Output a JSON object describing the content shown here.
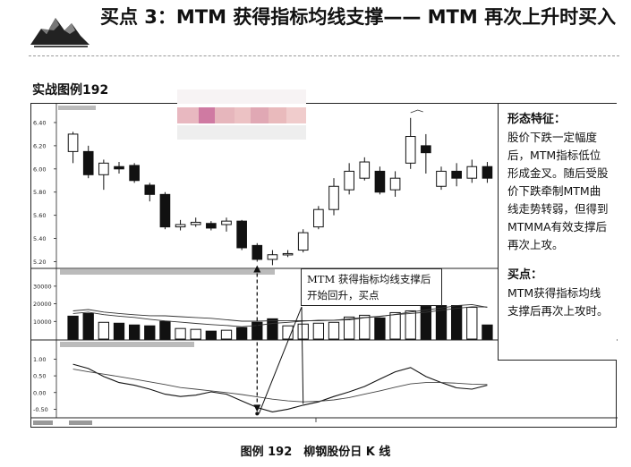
{
  "header": {
    "title": "买点 3：MTM 获得指标均线支撑—— MTM 再次上升时买入",
    "logo_icon": "mountain-logo-icon"
  },
  "section_title": "实战图例192",
  "sidebar": {
    "form_heading": "形态特征：",
    "form_text": "股价下跌一定幅度后，MTM指标低位形成金叉。随后受股价下跌牵制MTM曲线走势转弱，但得到MTMMA有效支撑后再次上攻。",
    "buy_heading": "买点：",
    "buy_text": "MTM获得指标均线支撑后再次上攻时。"
  },
  "callout": {
    "text": "MTM 获得指标均线支撑后开始回升，买点"
  },
  "caption": "图例 192　柳钢股份日 K 线",
  "chart_data": [
    {
      "type": "candlestick",
      "panel": "price",
      "y_ticks": [
        "6.40",
        "6.20",
        "6.00",
        "5.80",
        "5.60",
        "5.40",
        "5.20"
      ],
      "ylim": [
        5.15,
        6.5
      ],
      "candles": [
        {
          "o": 6.15,
          "c": 6.3,
          "h": 6.32,
          "l": 6.05
        },
        {
          "o": 6.15,
          "c": 5.95,
          "h": 6.2,
          "l": 5.92
        },
        {
          "o": 5.95,
          "c": 6.05,
          "h": 6.08,
          "l": 5.82
        },
        {
          "o": 6.02,
          "c": 6.0,
          "h": 6.06,
          "l": 5.96
        },
        {
          "o": 6.03,
          "c": 5.9,
          "h": 6.05,
          "l": 5.88
        },
        {
          "o": 5.86,
          "c": 5.78,
          "h": 5.88,
          "l": 5.72
        },
        {
          "o": 5.78,
          "c": 5.5,
          "h": 5.8,
          "l": 5.48
        },
        {
          "o": 5.5,
          "c": 5.52,
          "h": 5.56,
          "l": 5.47
        },
        {
          "o": 5.52,
          "c": 5.54,
          "h": 5.58,
          "l": 5.5
        },
        {
          "o": 5.53,
          "c": 5.49,
          "h": 5.55,
          "l": 5.47
        },
        {
          "o": 5.52,
          "c": 5.55,
          "h": 5.58,
          "l": 5.46
        },
        {
          "o": 5.55,
          "c": 5.32,
          "h": 5.56,
          "l": 5.3
        },
        {
          "o": 5.34,
          "c": 5.22,
          "h": 5.36,
          "l": 5.2
        },
        {
          "o": 5.22,
          "c": 5.26,
          "h": 5.3,
          "l": 5.17
        },
        {
          "o": 5.26,
          "c": 5.27,
          "h": 5.3,
          "l": 5.24
        },
        {
          "o": 5.3,
          "c": 5.45,
          "h": 5.48,
          "l": 5.28
        },
        {
          "o": 5.5,
          "c": 5.65,
          "h": 5.68,
          "l": 5.48
        },
        {
          "o": 5.65,
          "c": 5.85,
          "h": 5.92,
          "l": 5.6
        },
        {
          "o": 5.82,
          "c": 5.98,
          "h": 6.05,
          "l": 5.78
        },
        {
          "o": 5.92,
          "c": 6.06,
          "h": 6.1,
          "l": 5.9
        },
        {
          "o": 5.98,
          "c": 5.8,
          "h": 6.02,
          "l": 5.78
        },
        {
          "o": 5.82,
          "c": 5.92,
          "h": 5.98,
          "l": 5.76
        },
        {
          "o": 6.05,
          "c": 6.28,
          "h": 6.44,
          "l": 6.0
        },
        {
          "o": 6.2,
          "c": 6.14,
          "h": 6.3,
          "l": 5.96
        },
        {
          "o": 5.85,
          "c": 5.98,
          "h": 6.02,
          "l": 5.82
        },
        {
          "o": 5.98,
          "c": 5.92,
          "h": 6.05,
          "l": 5.85
        },
        {
          "o": 5.92,
          "c": 6.02,
          "h": 6.08,
          "l": 5.88
        },
        {
          "o": 6.02,
          "c": 5.92,
          "h": 6.06,
          "l": 5.88
        }
      ]
    },
    {
      "type": "bar",
      "panel": "volume",
      "y_ticks": [
        "30000",
        "20000",
        "10000"
      ],
      "ylim": [
        0,
        34000
      ],
      "values": [
        13000,
        14500,
        9500,
        9000,
        8000,
        7500,
        10000,
        6000,
        5500,
        4500,
        5000,
        6500,
        9500,
        11500,
        7500,
        8500,
        9000,
        9500,
        12500,
        13500,
        12000,
        15000,
        16000,
        18500,
        19000,
        19000,
        18000,
        8000
      ],
      "solid": [
        true,
        true,
        false,
        true,
        true,
        true,
        true,
        false,
        false,
        true,
        false,
        true,
        true,
        true,
        false,
        false,
        false,
        false,
        false,
        false,
        true,
        false,
        false,
        true,
        true,
        true,
        false,
        true
      ]
    },
    {
      "type": "line",
      "panel": "mtm",
      "y_ticks": [
        "1.00",
        "0.50",
        "0.00",
        "-0.50"
      ],
      "ylim": [
        -0.65,
        1.2
      ],
      "series": [
        {
          "values": [
            0.85,
            0.72,
            0.48,
            0.3,
            0.22,
            0.1,
            -0.05,
            -0.12,
            -0.08,
            0.02,
            -0.05,
            -0.25,
            -0.45,
            -0.58,
            -0.5,
            -0.38,
            -0.28,
            -0.12,
            0.02,
            0.18,
            0.4,
            0.62,
            0.75,
            0.48,
            0.3,
            0.14,
            0.1,
            0.22
          ]
        },
        {
          "values": [
            0.7,
            0.62,
            0.55,
            0.48,
            0.4,
            0.32,
            0.24,
            0.15,
            0.1,
            0.05,
            0.0,
            -0.06,
            -0.13,
            -0.2,
            -0.25,
            -0.28,
            -0.26,
            -0.22,
            -0.15,
            -0.05,
            0.05,
            0.16,
            0.26,
            0.3,
            0.3,
            0.28,
            0.25,
            0.24
          ]
        }
      ]
    }
  ]
}
